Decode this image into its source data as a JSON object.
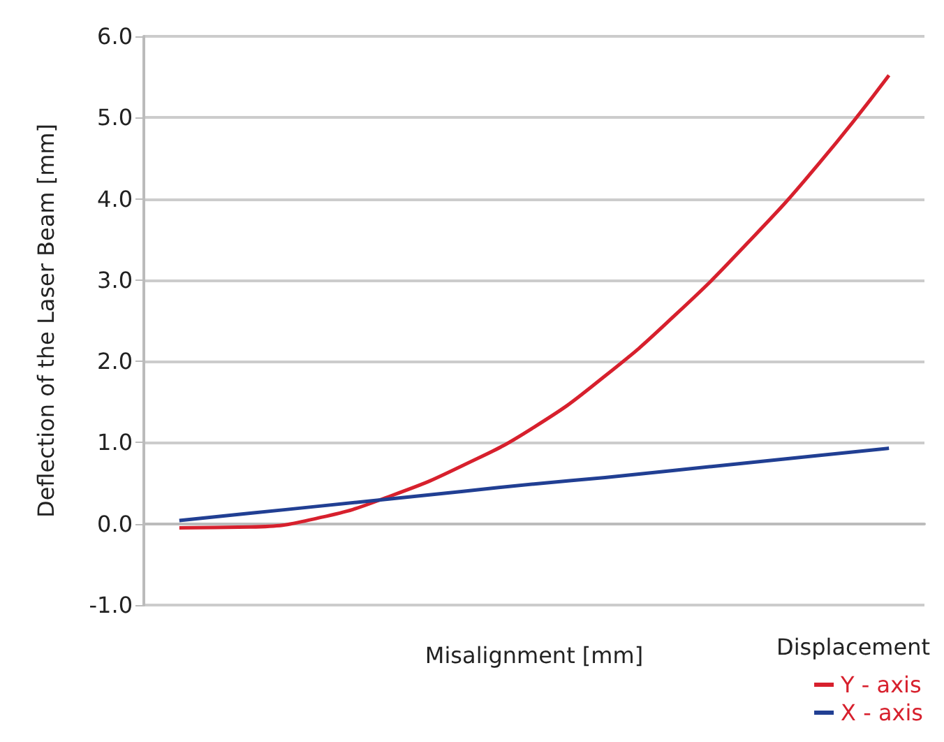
{
  "chart_data": {
    "type": "line",
    "ylabel": "Deflection of the Laser Beam [mm]",
    "xlabel": "Misalignment [mm]",
    "legend_title": "Displacement",
    "legend": "bottom right",
    "grid": "y",
    "marker": "none",
    "line_style": "solid",
    "categories": [
      null,
      null,
      null,
      null,
      null,
      null,
      null,
      null,
      null,
      null,
      null
    ],
    "ylim": [
      -1.0,
      6.0
    ],
    "yticks": [
      {
        "value": -1,
        "label": "-1.0"
      },
      {
        "value": 0,
        "label": "0.0"
      },
      {
        "value": 1,
        "label": "1.0"
      },
      {
        "value": 2,
        "label": "2.0"
      },
      {
        "value": 3,
        "label": "3.0"
      },
      {
        "value": 4,
        "label": "4.0"
      },
      {
        "value": 5,
        "label": "5.0"
      },
      {
        "value": 6,
        "label": "6.0"
      }
    ],
    "series": [
      {
        "name": "Y - axis",
        "color": "#d7202d",
        "values": [
          -0.05,
          -0.04,
          0.08,
          0.35,
          0.72,
          1.19,
          1.82,
          2.58,
          3.45,
          4.42,
          5.52
        ]
      },
      {
        "name": "X - axis",
        "color": "#213f93",
        "values": [
          0.04,
          0.13,
          0.22,
          0.31,
          0.4,
          0.49,
          0.57,
          0.66,
          0.75,
          0.84,
          0.93
        ]
      }
    ]
  }
}
